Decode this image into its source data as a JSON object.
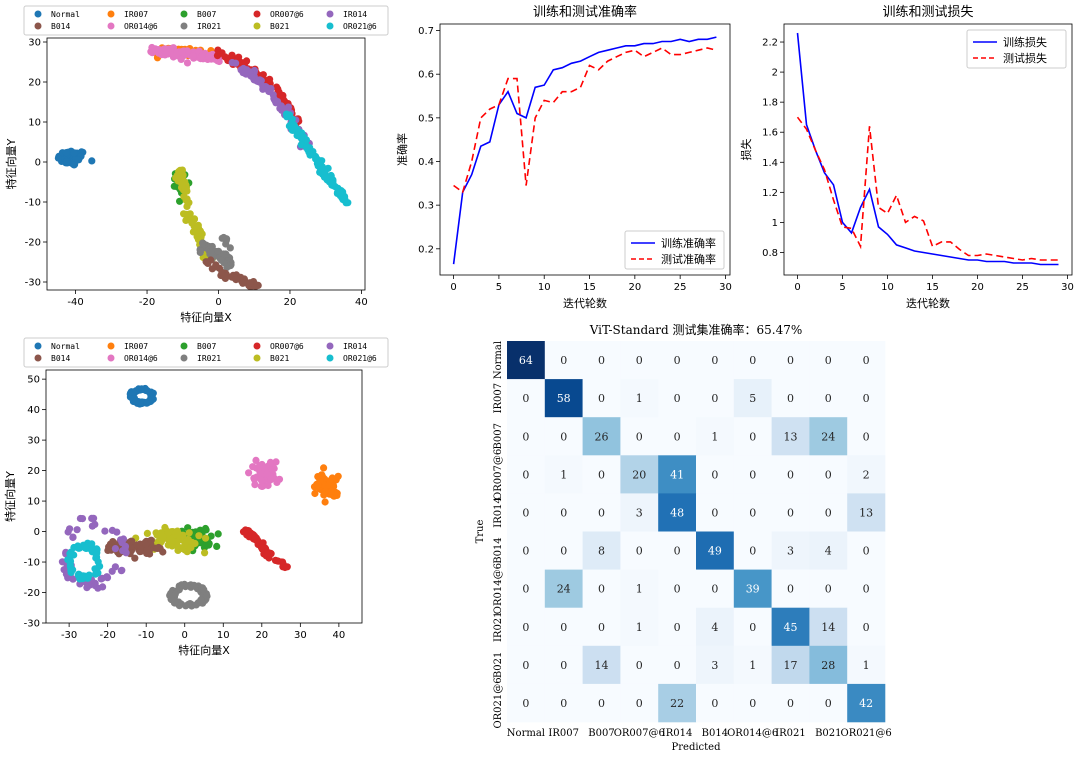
{
  "colors": {
    "Normal": "#1f77b4",
    "IR007": "#ff7f0e",
    "B007": "#2ca02c",
    "OR007@6": "#d62728",
    "IR014": "#9467bd",
    "B014": "#8c564b",
    "OR014@6": "#e377c2",
    "IR021": "#7f7f7f",
    "B021": "#bcbd22",
    "OR021@6": "#17becf",
    "train": "#0000ff",
    "test": "#ff0000"
  },
  "chart_data": [
    {
      "id": "tsne_top",
      "type": "scatter",
      "xlabel": "特征向量X",
      "ylabel": "特征向量Y",
      "xlim": [
        -48,
        41
      ],
      "ylim": [
        -32,
        31
      ],
      "xticks": [
        -40,
        -20,
        0,
        20,
        40
      ],
      "yticks": [
        -30,
        -20,
        -10,
        0,
        10,
        20,
        30
      ],
      "legend": [
        "Normal",
        "IR007",
        "B007",
        "OR007@6",
        "IR014",
        "B014",
        "OR014@6",
        "IR021",
        "B021",
        "OR021@6"
      ],
      "clusters": [
        {
          "class": "Normal",
          "shape": "blob",
          "cx": -41,
          "cy": 1,
          "rx": 4,
          "ry": 2,
          "n": 70
        },
        {
          "class": "IR007",
          "shape": "arc",
          "points": [
            [
              -19,
              28
            ],
            [
              -10,
              28
            ],
            [
              -2,
              27
            ]
          ],
          "spread": 0.8,
          "n": 40
        },
        {
          "class": "OR014@6",
          "shape": "arc",
          "points": [
            [
              -19,
              28
            ],
            [
              -10,
              27
            ],
            [
              0,
              26
            ]
          ],
          "spread": 0.8,
          "n": 110
        },
        {
          "class": "OR007@6",
          "shape": "arc",
          "points": [
            [
              0,
              27
            ],
            [
              8,
              24
            ],
            [
              16,
              18
            ],
            [
              22,
              10
            ]
          ],
          "spread": 0.9,
          "n": 90
        },
        {
          "class": "IR014",
          "shape": "arc",
          "points": [
            [
              4,
              25
            ],
            [
              12,
              20
            ],
            [
              19,
              12
            ],
            [
              25,
              4
            ]
          ],
          "spread": 0.9,
          "n": 90
        },
        {
          "class": "OR021@6",
          "shape": "arc",
          "points": [
            [
              19,
              12
            ],
            [
              24,
              5
            ],
            [
              30,
              -3
            ],
            [
              36,
              -10
            ]
          ],
          "spread": 0.8,
          "n": 110
        },
        {
          "class": "B007",
          "shape": "blob",
          "cx": -10.5,
          "cy": -5,
          "rx": 1.5,
          "ry": 2.5,
          "n": 30
        },
        {
          "class": "B021",
          "shape": "arc",
          "points": [
            [
              -11,
              -2
            ],
            [
              -9.5,
              -7
            ],
            [
              -8.5,
              -13
            ],
            [
              -5,
              -20
            ],
            [
              -2,
              -25
            ]
          ],
          "spread": 1.0,
          "n": 80
        },
        {
          "class": "IR021",
          "shape": "arc",
          "points": [
            [
              -5,
              -21
            ],
            [
              -1,
              -23
            ],
            [
              3,
              -26
            ],
            [
              2,
              -19
            ]
          ],
          "spread": 1.0,
          "n": 60
        },
        {
          "class": "B014",
          "shape": "arc",
          "points": [
            [
              -3,
              -25
            ],
            [
              2,
              -28
            ],
            [
              8,
              -30
            ],
            [
              11,
              -31
            ]
          ],
          "spread": 0.7,
          "n": 45
        }
      ]
    },
    {
      "id": "accuracy",
      "type": "line",
      "title": "训练和测试准确率",
      "xlabel": "迭代轮数",
      "ylabel": "准确率",
      "xlim": [
        -1.5,
        30.5
      ],
      "ylim": [
        0.14,
        0.715
      ],
      "xticks": [
        0,
        5,
        10,
        15,
        20,
        25,
        30
      ],
      "yticks": [
        0.2,
        0.3,
        0.4,
        0.5,
        0.6,
        0.7
      ],
      "legend_position": "lower-right",
      "series": [
        {
          "name": "训练准确率",
          "color": "train",
          "dash": "",
          "values": [
            0.165,
            0.33,
            0.37,
            0.435,
            0.445,
            0.53,
            0.56,
            0.51,
            0.5,
            0.57,
            0.575,
            0.61,
            0.615,
            0.625,
            0.63,
            0.64,
            0.65,
            0.655,
            0.66,
            0.665,
            0.665,
            0.67,
            0.67,
            0.675,
            0.675,
            0.68,
            0.675,
            0.68,
            0.68,
            0.685
          ]
        },
        {
          "name": "测试准确率",
          "color": "test",
          "dash": "7,4",
          "values": [
            0.345,
            0.33,
            0.4,
            0.5,
            0.52,
            0.53,
            0.59,
            0.59,
            0.345,
            0.5,
            0.54,
            0.535,
            0.56,
            0.56,
            0.57,
            0.62,
            0.61,
            0.63,
            0.64,
            0.65,
            0.655,
            0.64,
            0.65,
            0.66,
            0.645,
            0.645,
            0.65,
            0.655,
            0.66,
            0.655
          ]
        }
      ]
    },
    {
      "id": "loss",
      "type": "line",
      "title": "训练和测试损失",
      "xlabel": "迭代轮数",
      "ylabel": "损失",
      "xlim": [
        -1.5,
        30.5
      ],
      "ylim": [
        0.65,
        2.32
      ],
      "xticks": [
        0,
        5,
        10,
        15,
        20,
        25,
        30
      ],
      "yticks": [
        0.8,
        1.0,
        1.2,
        1.4,
        1.6,
        1.8,
        2.0,
        2.2
      ],
      "legend_position": "upper-right",
      "series": [
        {
          "name": "训练损失",
          "color": "train",
          "dash": "",
          "values": [
            2.26,
            1.65,
            1.48,
            1.33,
            1.25,
            1.0,
            0.93,
            1.1,
            1.22,
            0.97,
            0.92,
            0.85,
            0.83,
            0.81,
            0.8,
            0.79,
            0.78,
            0.77,
            0.76,
            0.75,
            0.75,
            0.74,
            0.74,
            0.74,
            0.73,
            0.73,
            0.73,
            0.72,
            0.72,
            0.72
          ]
        },
        {
          "name": "测试损失",
          "color": "test",
          "dash": "7,4",
          "values": [
            1.7,
            1.62,
            1.48,
            1.35,
            1.15,
            0.97,
            0.96,
            0.84,
            1.64,
            1.1,
            1.06,
            1.18,
            1.0,
            1.04,
            1.01,
            0.84,
            0.87,
            0.87,
            0.82,
            0.78,
            0.78,
            0.79,
            0.78,
            0.77,
            0.76,
            0.75,
            0.76,
            0.75,
            0.75,
            0.75
          ]
        }
      ]
    },
    {
      "id": "tsne_bottom",
      "type": "scatter",
      "xlabel": "特征向量X",
      "ylabel": "特征向量Y",
      "xlim": [
        -36,
        46
      ],
      "ylim": [
        -30,
        53
      ],
      "xticks": [
        -30,
        -20,
        -10,
        0,
        10,
        20,
        30,
        40
      ],
      "yticks": [
        -30,
        -20,
        -10,
        0,
        10,
        20,
        30,
        40,
        50
      ],
      "legend": [
        "Normal",
        "IR007",
        "B007",
        "OR007@6",
        "IR014",
        "B014",
        "OR014@6",
        "IR021",
        "B021",
        "OR021@6"
      ],
      "clusters": [
        {
          "class": "Normal",
          "shape": "ring",
          "cx": -11,
          "cy": 44.5,
          "rx": 3,
          "ry": 2.5,
          "n": 70
        },
        {
          "class": "OR014@6",
          "shape": "blob",
          "cx": 21,
          "cy": 19,
          "rx": 3.5,
          "ry": 4,
          "n": 70
        },
        {
          "class": "IR007",
          "shape": "blob",
          "cx": 37,
          "cy": 15,
          "rx": 3,
          "ry": 3.8,
          "n": 70
        },
        {
          "class": "OR007@6",
          "shape": "arc",
          "points": [
            [
              15,
              1
            ],
            [
              19,
              -3
            ],
            [
              22,
              -8
            ],
            [
              26,
              -11
            ]
          ],
          "spread": 0.9,
          "n": 60
        },
        {
          "class": "B007",
          "shape": "blob",
          "cx": 3,
          "cy": -2.5,
          "rx": 5,
          "ry": 3.5,
          "n": 60
        },
        {
          "class": "B021",
          "shape": "blob",
          "cx": -3,
          "cy": -3,
          "rx": 7,
          "ry": 3.5,
          "n": 70
        },
        {
          "class": "B014",
          "shape": "blob",
          "cx": -14,
          "cy": -5,
          "rx": 7,
          "ry": 3,
          "n": 70
        },
        {
          "class": "IR014",
          "shape": "ring",
          "cx": -24,
          "cy": -7,
          "rx": 8,
          "ry": 11,
          "n": 55
        },
        {
          "class": "OR021@6",
          "shape": "ring",
          "cx": -26,
          "cy": -10,
          "rx": 4,
          "ry": 6,
          "n": 55
        },
        {
          "class": "IR021",
          "shape": "ring",
          "cx": 1,
          "cy": -21,
          "rx": 4.5,
          "ry": 3.5,
          "n": 60
        }
      ]
    },
    {
      "id": "confusion",
      "type": "heatmap",
      "title": "ViT-Standard 测试集准确率：65.47%",
      "xlabel": "Predicted",
      "ylabel": "True",
      "labels": [
        "Normal",
        "IR007",
        "B007",
        "OR007@6",
        "IR014",
        "B014",
        "OR014@6",
        "IR021",
        "B021",
        "OR021@6"
      ],
      "max": 64,
      "matrix": [
        [
          64,
          0,
          0,
          0,
          0,
          0,
          0,
          0,
          0,
          0
        ],
        [
          0,
          58,
          0,
          1,
          0,
          0,
          5,
          0,
          0,
          0
        ],
        [
          0,
          0,
          26,
          0,
          0,
          1,
          0,
          13,
          24,
          0
        ],
        [
          0,
          1,
          0,
          20,
          41,
          0,
          0,
          0,
          0,
          2
        ],
        [
          0,
          0,
          0,
          3,
          48,
          0,
          0,
          0,
          0,
          13
        ],
        [
          0,
          0,
          8,
          0,
          0,
          49,
          0,
          3,
          4,
          0
        ],
        [
          0,
          24,
          0,
          1,
          0,
          0,
          39,
          0,
          0,
          0
        ],
        [
          0,
          0,
          0,
          1,
          0,
          4,
          0,
          45,
          14,
          0
        ],
        [
          0,
          0,
          14,
          0,
          0,
          3,
          1,
          17,
          28,
          1
        ],
        [
          0,
          0,
          0,
          0,
          22,
          0,
          0,
          0,
          0,
          42
        ]
      ]
    }
  ]
}
